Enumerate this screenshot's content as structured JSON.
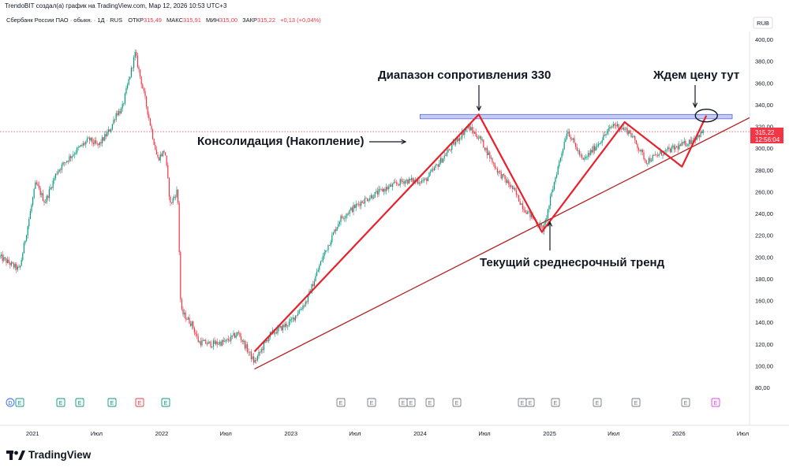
{
  "header": {
    "caption": "TrendoBIT создал(а) график на TradingView.com, Мар 12, 2026 10:53 UTC+3"
  },
  "legend": {
    "title": "Сбербанк России ПАО · обыкн. · 1Д · RUS",
    "open_label": "ОТКР",
    "open_value": "315,49",
    "high_label": "МАКС",
    "high_value": "315,91",
    "low_label": "МИН",
    "low_value": "315,00",
    "close_label": "ЗАКР",
    "close_value": "315,22",
    "change": "+0,13 (+0,04%)"
  },
  "price_scale": {
    "currency": "RUB",
    "labels": [
      "400,00",
      "380,00",
      "360,00",
      "340,00",
      "320,00",
      "300,00",
      "280,00",
      "260,00",
      "240,00",
      "220,00",
      "200,00",
      "180,00",
      "160,00",
      "140,00",
      "120,00",
      "100,00",
      "80,00"
    ]
  },
  "price_badge": {
    "price": "315,22",
    "time": "12:56:04",
    "color": "#f23645"
  },
  "time_axis": {
    "labels": [
      "2021",
      "Июл",
      "2022",
      "Июл",
      "2023",
      "Июл",
      "2024",
      "Июл",
      "2025",
      "Июл",
      "2026",
      "Июл"
    ]
  },
  "annotations": {
    "resistance_label": "Диапазон сопротивления 330",
    "consolidation_label": "Консолидация (Накопление)",
    "wait_label": "Ждем цену тут",
    "trend_label": "Текущий среднесрочный тренд"
  },
  "event_markers": {
    "dividend": "D",
    "earnings": "E"
  },
  "brand": {
    "name": "TradingView"
  },
  "colors": {
    "up": "#089981",
    "down": "#f23645",
    "drawing_red": "#e8212b",
    "trendline": "#b22222",
    "resistance_fill": "#c5cbf7",
    "resistance_stroke": "#5b6bd6"
  },
  "chart_data": {
    "type": "candlestick",
    "title": "Сбербанк России ПАО · обыкн. · 1Д · RUS",
    "currency": "RUB",
    "y_range": [
      80,
      400
    ],
    "x_range": [
      "2020-10-01",
      "2026-07-20"
    ],
    "last_close": 315.22,
    "price_path": [
      [
        "2020-10-01",
        200
      ],
      [
        "2020-11-25",
        188
      ],
      [
        "2021-01-10",
        268
      ],
      [
        "2021-02-05",
        250
      ],
      [
        "2021-03-10",
        278
      ],
      [
        "2021-04-05",
        288
      ],
      [
        "2021-05-05",
        298
      ],
      [
        "2021-06-10",
        308
      ],
      [
        "2021-07-05",
        302
      ],
      [
        "2021-08-10",
        318
      ],
      [
        "2021-08-25",
        332
      ],
      [
        "2021-09-10",
        335
      ],
      [
        "2021-10-18",
        387
      ],
      [
        "2021-11-15",
        345
      ],
      [
        "2021-12-20",
        290
      ],
      [
        "2022-01-10",
        298
      ],
      [
        "2022-01-25",
        248
      ],
      [
        "2022-02-15",
        262
      ],
      [
        "2022-02-24",
        150
      ],
      [
        "2022-03-28",
        138
      ],
      [
        "2022-04-15",
        122
      ],
      [
        "2022-05-20",
        120
      ],
      [
        "2022-07-01",
        122
      ],
      [
        "2022-08-05",
        130
      ],
      [
        "2022-09-20",
        103
      ],
      [
        "2022-11-01",
        128
      ],
      [
        "2022-12-30",
        140
      ],
      [
        "2023-02-15",
        160
      ],
      [
        "2023-04-01",
        200
      ],
      [
        "2023-05-20",
        235
      ],
      [
        "2023-07-15",
        250
      ],
      [
        "2023-09-20",
        262
      ],
      [
        "2023-11-15",
        270
      ],
      [
        "2024-01-15",
        270
      ],
      [
        "2024-03-15",
        295
      ],
      [
        "2024-05-15",
        320
      ],
      [
        "2024-06-20",
        308
      ],
      [
        "2024-08-05",
        280
      ],
      [
        "2024-09-20",
        262
      ],
      [
        "2024-10-20",
        245
      ],
      [
        "2024-12-15",
        225
      ],
      [
        "2025-01-15",
        270
      ],
      [
        "2025-02-20",
        317
      ],
      [
        "2025-04-05",
        288
      ],
      [
        "2025-05-20",
        305
      ],
      [
        "2025-07-01",
        322
      ],
      [
        "2025-08-15",
        315
      ],
      [
        "2025-10-01",
        288
      ],
      [
        "2025-11-10",
        295
      ],
      [
        "2025-12-20",
        300
      ],
      [
        "2026-02-01",
        306
      ],
      [
        "2026-03-12",
        315.22
      ]
    ],
    "drawings": {
      "resistance_zone": {
        "from": "2024-01-01",
        "to": "2026-06-01",
        "low": 327,
        "high": 331
      },
      "trend_line": {
        "points": [
          [
            "2022-09-20",
            97
          ],
          [
            "2026-07-20",
            328
          ]
        ]
      },
      "zigzag": [
        [
          "2022-09-20",
          113
        ],
        [
          "2024-06-15",
          331
        ],
        [
          "2024-12-10",
          223
        ],
        [
          "2025-08-01",
          324
        ],
        [
          "2026-01-10",
          283
        ],
        [
          "2026-03-20",
          330
        ]
      ]
    }
  }
}
